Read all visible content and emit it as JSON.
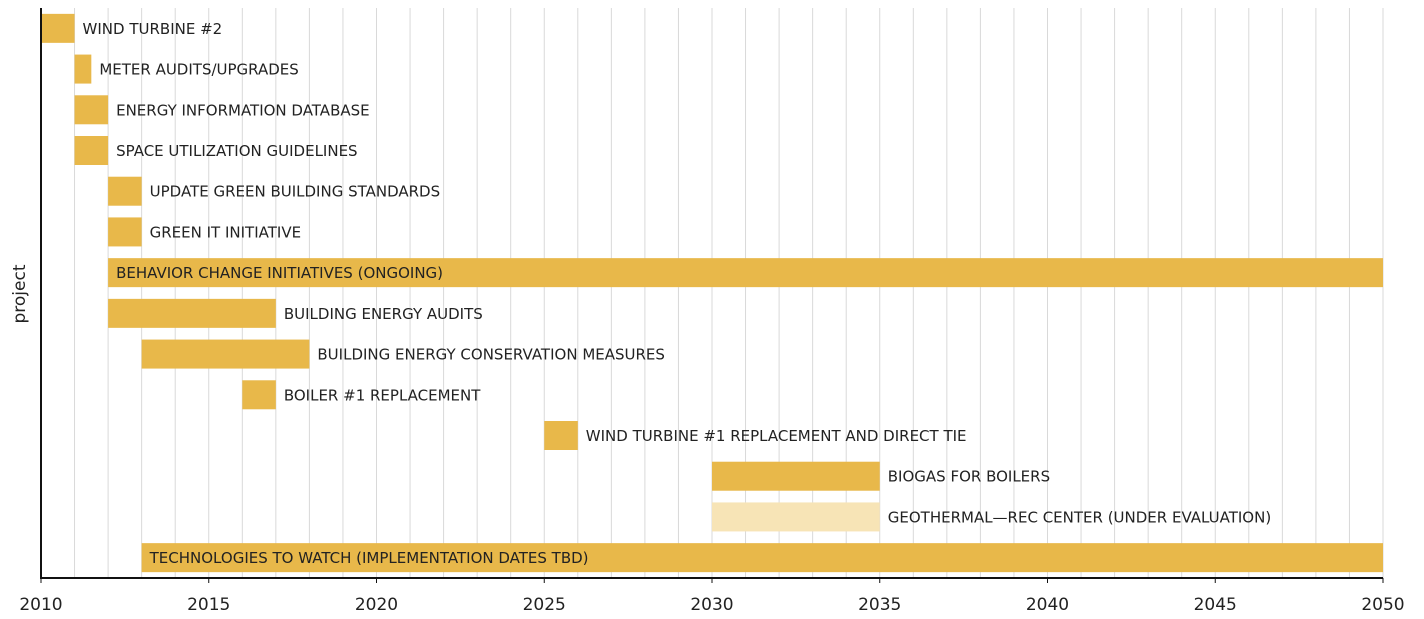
{
  "chart_data": {
    "type": "gantt",
    "ylabel": "project",
    "xlim": [
      2010,
      2050
    ],
    "xticks": [
      2010,
      2015,
      2020,
      2025,
      2030,
      2035,
      2040,
      2045,
      2050
    ],
    "xgrid": [
      2011,
      2012,
      2013,
      2014,
      2015,
      2016,
      2017,
      2018,
      2019,
      2020,
      2021,
      2022,
      2023,
      2024,
      2025,
      2026,
      2027,
      2028,
      2029,
      2030,
      2031,
      2032,
      2033,
      2034,
      2035,
      2036,
      2037,
      2038,
      2039,
      2040,
      2041,
      2042,
      2043,
      2044,
      2045,
      2046,
      2047,
      2048,
      2049,
      2050
    ],
    "tasks": [
      {
        "name": "WIND TURBINE #2",
        "start": 2010,
        "end": 2011,
        "color": "#e8b84a"
      },
      {
        "name": "METER AUDITS/UPGRADES",
        "start": 2011,
        "end": 2011.5,
        "color": "#e8b84a"
      },
      {
        "name": "ENERGY INFORMATION DATABASE",
        "start": 2011,
        "end": 2012,
        "color": "#e8b84a"
      },
      {
        "name": "SPACE UTILIZATION GUIDELINES",
        "start": 2011,
        "end": 2012,
        "color": "#e8b84a"
      },
      {
        "name": "UPDATE GREEN BUILDING STANDARDS",
        "start": 2012,
        "end": 2013,
        "color": "#e8b84a"
      },
      {
        "name": "GREEN IT INITIATIVE",
        "start": 2012,
        "end": 2013,
        "color": "#e8b84a"
      },
      {
        "name": "BEHAVIOR CHANGE INITIATIVES (ONGOING)",
        "start": 2012,
        "end": 2050,
        "color": "#e8b84a"
      },
      {
        "name": "BUILDING ENERGY AUDITS",
        "start": 2012,
        "end": 2017,
        "color": "#e8b84a"
      },
      {
        "name": "BUILDING ENERGY CONSERVATION MEASURES",
        "start": 2013,
        "end": 2018,
        "color": "#e8b84a"
      },
      {
        "name": "BOILER #1 REPLACEMENT",
        "start": 2016,
        "end": 2017,
        "color": "#e8b84a"
      },
      {
        "name": "WIND TURBINE #1 REPLACEMENT AND DIRECT TIE",
        "start": 2025,
        "end": 2026,
        "color": "#e8b84a"
      },
      {
        "name": "BIOGAS FOR BOILERS",
        "start": 2030,
        "end": 2035,
        "color": "#e8b84a"
      },
      {
        "name": "GEOTHERMAL—REC CENTER (UNDER EVALUATION)",
        "start": 2030,
        "end": 2035,
        "color": "#f7e4b6"
      },
      {
        "name": "TECHNOLOGIES TO WATCH (IMPLEMENTATION DATES TBD)",
        "start": 2013,
        "end": 2050,
        "color": "#e8b84a"
      }
    ]
  }
}
